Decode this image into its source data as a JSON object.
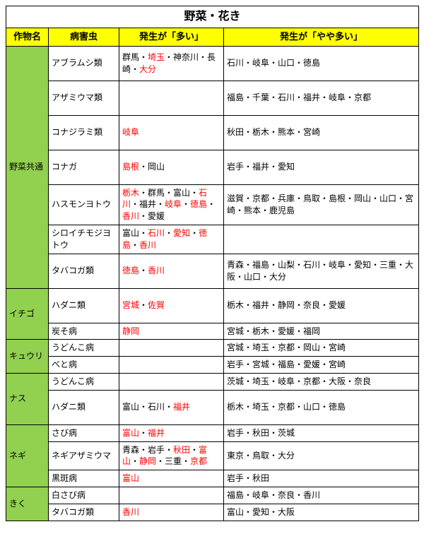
{
  "title": "野菜・花き",
  "headers": {
    "crop": "作物名",
    "pest": "病害虫",
    "many": "発生が「多い」",
    "some": "発生が「やや多い」"
  },
  "groups": [
    {
      "crop": "野菜共通",
      "rows": [
        {
          "pest": "アブラムシ類",
          "many": [
            {
              "t": "群馬・"
            },
            {
              "t": "埼玉",
              "r": true
            },
            {
              "t": "・神奈川・長崎・"
            },
            {
              "t": "大分",
              "r": true
            }
          ],
          "some": "石川・岐阜・山口・徳島",
          "tall": true
        },
        {
          "pest": "アザミウマ類",
          "many": [],
          "some": "福島・千葉・石川・福井・岐阜・京都",
          "tall": true
        },
        {
          "pest": "コナジラミ類",
          "many": [
            {
              "t": "岐阜",
              "r": true
            }
          ],
          "some": "秋田・栃木・熊本・宮崎",
          "tall": true
        },
        {
          "pest": "コナガ",
          "many": [
            {
              "t": "島根",
              "r": true
            },
            {
              "t": "・岡山"
            }
          ],
          "some": "岩手・福井・愛知",
          "tall": true
        },
        {
          "pest": "ハスモンヨトウ",
          "many": [
            {
              "t": "栃木",
              "r": true
            },
            {
              "t": "・群馬・富山・"
            },
            {
              "t": "石川",
              "r": true
            },
            {
              "t": "・福井・"
            },
            {
              "t": "岐阜",
              "r": true
            },
            {
              "t": "・"
            },
            {
              "t": "徳島",
              "r": true
            },
            {
              "t": "・"
            },
            {
              "t": "香川",
              "r": true
            },
            {
              "t": "・愛媛"
            }
          ],
          "some": "滋賀・京都・兵庫・鳥取・島根・岡山・山口・宮崎・熊本・鹿児島",
          "tall": true
        },
        {
          "pest": "シロイチモジヨトウ",
          "many": [
            {
              "t": "富山・"
            },
            {
              "t": "石川",
              "r": true
            },
            {
              "t": "・"
            },
            {
              "t": "愛知",
              "r": true
            },
            {
              "t": "・"
            },
            {
              "t": "徳島",
              "r": true
            },
            {
              "t": "・"
            },
            {
              "t": "香川",
              "r": true
            }
          ],
          "some": ""
        },
        {
          "pest": "タバコガ類",
          "many": [
            {
              "t": "徳島",
              "r": true
            },
            {
              "t": "・"
            },
            {
              "t": "香川",
              "r": true
            }
          ],
          "some": "青森・福島・山梨・石川・岐阜・愛知・三重・大阪・山口・大分",
          "tall": true
        }
      ]
    },
    {
      "crop": "イチゴ",
      "rows": [
        {
          "pest": "ハダニ類",
          "many": [
            {
              "t": "宮城",
              "r": true
            },
            {
              "t": "・"
            },
            {
              "t": "佐賀",
              "r": true
            }
          ],
          "some": "栃木・福井・静岡・奈良・愛媛",
          "tall": true
        },
        {
          "pest": "炭そ病",
          "many": [
            {
              "t": "静岡",
              "r": true
            }
          ],
          "some": "宮城・栃木・愛媛・福岡"
        }
      ]
    },
    {
      "crop": "キュウリ",
      "rows": [
        {
          "pest": "うどんこ病",
          "many": [],
          "some": "宮城・埼玉・京都・岡山・宮崎"
        },
        {
          "pest": "べと病",
          "many": [],
          "some": "岩手・宮城・福島・愛媛・宮崎"
        }
      ]
    },
    {
      "crop": "ナス",
      "rows": [
        {
          "pest": "うどんこ病",
          "many": [],
          "some": "茨城・埼玉・岐阜・京都・大阪・奈良"
        },
        {
          "pest": "ハダニ類",
          "many": [
            {
              "t": "富山・石川・"
            },
            {
              "t": "福井",
              "r": true
            }
          ],
          "some": "栃木・埼玉・京都・山口・徳島",
          "tall": true
        }
      ]
    },
    {
      "crop": "ネギ",
      "rows": [
        {
          "pest": "さび病",
          "many": [
            {
              "t": "富山",
              "r": true
            },
            {
              "t": "・"
            },
            {
              "t": "福井",
              "r": true
            }
          ],
          "some": "岩手・秋田・茨城"
        },
        {
          "pest": "ネギアザミウマ",
          "many": [
            {
              "t": "青森・岩手・"
            },
            {
              "t": "秋田",
              "r": true
            },
            {
              "t": "・"
            },
            {
              "t": "富山",
              "r": true
            },
            {
              "t": "・"
            },
            {
              "t": "静岡",
              "r": true
            },
            {
              "t": "・三重・"
            },
            {
              "t": "京都",
              "r": true
            }
          ],
          "some": "東京・鳥取・大分"
        },
        {
          "pest": "黒斑病",
          "many": [
            {
              "t": "富山",
              "r": true
            }
          ],
          "some": "岩手・秋田"
        }
      ]
    },
    {
      "crop": "きく",
      "rows": [
        {
          "pest": "白さび病",
          "many": [],
          "some": "福島・岐阜・奈良・香川"
        },
        {
          "pest": "タバコガ類",
          "many": [
            {
              "t": "香川",
              "r": true
            }
          ],
          "some": "富山・愛知・大阪"
        }
      ]
    }
  ]
}
